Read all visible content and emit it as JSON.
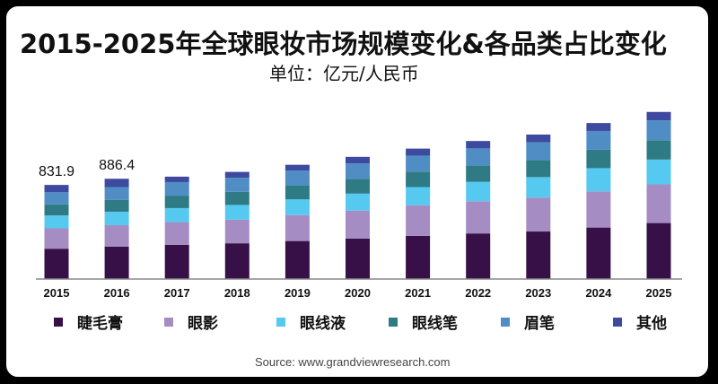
{
  "title": "2015-2025年全球眼妆市场规模变化&各品类占比变化",
  "subtitle": "单位：亿元/人民币",
  "source": "Source: www.grandviewresearch.com",
  "chart_data": {
    "type": "bar",
    "stacked": true,
    "title": "2015-2025年全球眼妆市场规模变化&各品类占比变化",
    "ylabel": "亿元/人民币",
    "categories": [
      "2015",
      "2016",
      "2017",
      "2018",
      "2019",
      "2020",
      "2021",
      "2022",
      "2023",
      "2024",
      "2025"
    ],
    "ylim": [
      0,
      2300
    ],
    "grid": false,
    "legend_position": "bottom",
    "annotations": [
      {
        "category": "2015",
        "text": "831.9"
      },
      {
        "category": "2016",
        "text": "886.4"
      }
    ],
    "series": [
      {
        "name": "睫毛膏",
        "color": "#371047",
        "values": [
          268,
          287,
          303,
          316,
          336,
          358,
          382,
          403,
          420,
          455,
          495
        ]
      },
      {
        "name": "眼影",
        "color": "#a58dc3",
        "values": [
          180,
          189,
          200,
          209,
          229,
          247,
          270,
          285,
          300,
          320,
          342
        ]
      },
      {
        "name": "眼线液",
        "color": "#55c9ef",
        "values": [
          114,
          119,
          124,
          130,
          139,
          150,
          161,
          171,
          181,
          205,
          219
        ]
      },
      {
        "name": "眼线笔",
        "color": "#2e7b86",
        "values": [
          98,
          105,
          110,
          116,
          124,
          130,
          136,
          146,
          152,
          163,
          171
        ]
      },
      {
        "name": "眉笔",
        "color": "#4f8dc4",
        "values": [
          107,
          113,
          120,
          125,
          130,
          137,
          142,
          150,
          157,
          166,
          176
        ]
      },
      {
        "name": "其他",
        "color": "#3d4a9f",
        "values": [
          64.9,
          73.4,
          48,
          51,
          52,
          58,
          62,
          65,
          67,
          70,
          74
        ]
      }
    ]
  }
}
